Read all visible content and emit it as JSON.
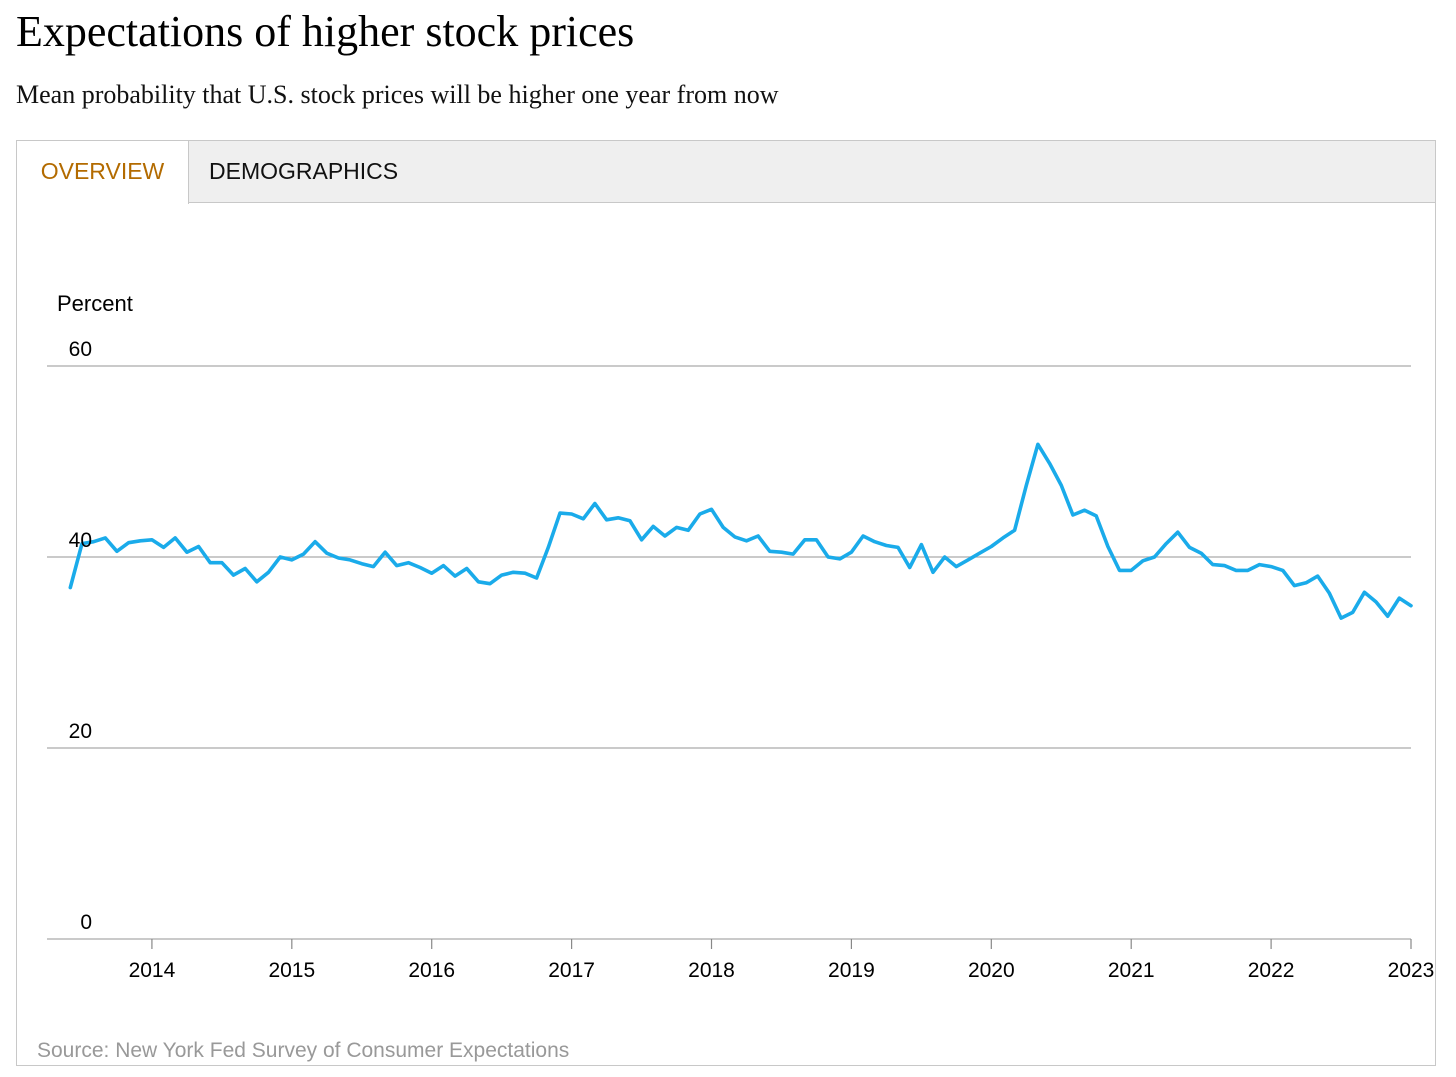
{
  "header": {
    "title": "Expectations of higher stock prices",
    "subtitle": "Mean probability that U.S. stock prices will be higher one year from now"
  },
  "tabs": [
    {
      "label": "OVERVIEW",
      "active": true
    },
    {
      "label": "DEMOGRAPHICS",
      "active": false
    }
  ],
  "source": "Source: New York Fed Survey of Consumer Expectations",
  "colors": {
    "line": "#1aabea",
    "active_tab": "#b36b00",
    "gridline": "#aaaaaa",
    "source_text": "#999999"
  },
  "chart_data": {
    "type": "line",
    "ylabel": "Percent",
    "ylim": [
      0,
      60
    ],
    "yticks": [
      0,
      20,
      40,
      60
    ],
    "xlim": [
      "2013-04",
      "2023-01"
    ],
    "xticks": [
      "2014",
      "2015",
      "2016",
      "2017",
      "2018",
      "2019",
      "2020",
      "2021",
      "2022",
      "2023"
    ],
    "grid": "horizontal",
    "series": [
      {
        "values": [
          [
            "2013-06",
            36.8
          ],
          [
            "2013-07",
            41.4
          ],
          [
            "2013-08",
            41.6
          ],
          [
            "2013-09",
            42.0
          ],
          [
            "2013-10",
            40.6
          ],
          [
            "2013-11",
            41.5
          ],
          [
            "2013-12",
            41.7
          ],
          [
            "2014-01",
            41.8
          ],
          [
            "2014-02",
            41.0
          ],
          [
            "2014-03",
            42.0
          ],
          [
            "2014-04",
            40.5
          ],
          [
            "2014-05",
            41.1
          ],
          [
            "2014-06",
            39.4
          ],
          [
            "2014-07",
            39.4
          ],
          [
            "2014-08",
            38.1
          ],
          [
            "2014-09",
            38.8
          ],
          [
            "2014-10",
            37.4
          ],
          [
            "2014-11",
            38.4
          ],
          [
            "2014-12",
            40.0
          ],
          [
            "2015-01",
            39.7
          ],
          [
            "2015-02",
            40.3
          ],
          [
            "2015-03",
            41.6
          ],
          [
            "2015-04",
            40.4
          ],
          [
            "2015-05",
            39.9
          ],
          [
            "2015-06",
            39.7
          ],
          [
            "2015-07",
            39.3
          ],
          [
            "2015-08",
            39.0
          ],
          [
            "2015-09",
            40.5
          ],
          [
            "2015-10",
            39.1
          ],
          [
            "2015-11",
            39.4
          ],
          [
            "2015-12",
            38.9
          ],
          [
            "2016-01",
            38.3
          ],
          [
            "2016-02",
            39.1
          ],
          [
            "2016-03",
            38.0
          ],
          [
            "2016-04",
            38.8
          ],
          [
            "2016-05",
            37.4
          ],
          [
            "2016-06",
            37.2
          ],
          [
            "2016-07",
            38.1
          ],
          [
            "2016-08",
            38.4
          ],
          [
            "2016-09",
            38.3
          ],
          [
            "2016-10",
            37.8
          ],
          [
            "2016-11",
            41.0
          ],
          [
            "2016-12",
            44.6
          ],
          [
            "2017-01",
            44.5
          ],
          [
            "2017-02",
            44.0
          ],
          [
            "2017-03",
            45.6
          ],
          [
            "2017-04",
            43.9
          ],
          [
            "2017-05",
            44.1
          ],
          [
            "2017-06",
            43.8
          ],
          [
            "2017-07",
            41.8
          ],
          [
            "2017-08",
            43.2
          ],
          [
            "2017-09",
            42.2
          ],
          [
            "2017-10",
            43.1
          ],
          [
            "2017-11",
            42.8
          ],
          [
            "2017-12",
            44.5
          ],
          [
            "2018-01",
            45.0
          ],
          [
            "2018-02",
            43.1
          ],
          [
            "2018-03",
            42.1
          ],
          [
            "2018-04",
            41.7
          ],
          [
            "2018-05",
            42.2
          ],
          [
            "2018-06",
            40.6
          ],
          [
            "2018-07",
            40.5
          ],
          [
            "2018-08",
            40.3
          ],
          [
            "2018-09",
            41.8
          ],
          [
            "2018-10",
            41.8
          ],
          [
            "2018-11",
            40.0
          ],
          [
            "2018-12",
            39.8
          ],
          [
            "2019-01",
            40.5
          ],
          [
            "2019-02",
            42.2
          ],
          [
            "2019-03",
            41.6
          ],
          [
            "2019-04",
            41.2
          ],
          [
            "2019-05",
            41.0
          ],
          [
            "2019-06",
            38.9
          ],
          [
            "2019-07",
            41.3
          ],
          [
            "2019-08",
            38.4
          ],
          [
            "2019-09",
            40.0
          ],
          [
            "2019-10",
            39.0
          ],
          [
            "2019-11",
            39.7
          ],
          [
            "2019-12",
            40.4
          ],
          [
            "2020-01",
            41.1
          ],
          [
            "2020-02",
            42.0
          ],
          [
            "2020-03",
            42.8
          ],
          [
            "2020-04",
            47.5
          ],
          [
            "2020-05",
            51.8
          ],
          [
            "2020-06",
            49.8
          ],
          [
            "2020-07",
            47.5
          ],
          [
            "2020-08",
            44.4
          ],
          [
            "2020-09",
            44.9
          ],
          [
            "2020-10",
            44.3
          ],
          [
            "2020-11",
            41.1
          ],
          [
            "2020-12",
            38.6
          ],
          [
            "2021-01",
            38.6
          ],
          [
            "2021-02",
            39.6
          ],
          [
            "2021-03",
            40.0
          ],
          [
            "2021-04",
            41.4
          ],
          [
            "2021-05",
            42.6
          ],
          [
            "2021-06",
            41.0
          ],
          [
            "2021-07",
            40.4
          ],
          [
            "2021-08",
            39.2
          ],
          [
            "2021-09",
            39.1
          ],
          [
            "2021-10",
            38.6
          ],
          [
            "2021-11",
            38.6
          ],
          [
            "2021-12",
            39.2
          ],
          [
            "2022-01",
            39.0
          ],
          [
            "2022-02",
            38.6
          ],
          [
            "2022-03",
            37.0
          ],
          [
            "2022-04",
            37.3
          ],
          [
            "2022-05",
            38.0
          ],
          [
            "2022-06",
            36.2
          ],
          [
            "2022-07",
            33.6
          ],
          [
            "2022-08",
            34.2
          ],
          [
            "2022-09",
            36.3
          ],
          [
            "2022-10",
            35.3
          ],
          [
            "2022-11",
            33.8
          ],
          [
            "2022-12",
            35.7
          ],
          [
            "2023-01",
            34.9
          ]
        ]
      }
    ]
  }
}
